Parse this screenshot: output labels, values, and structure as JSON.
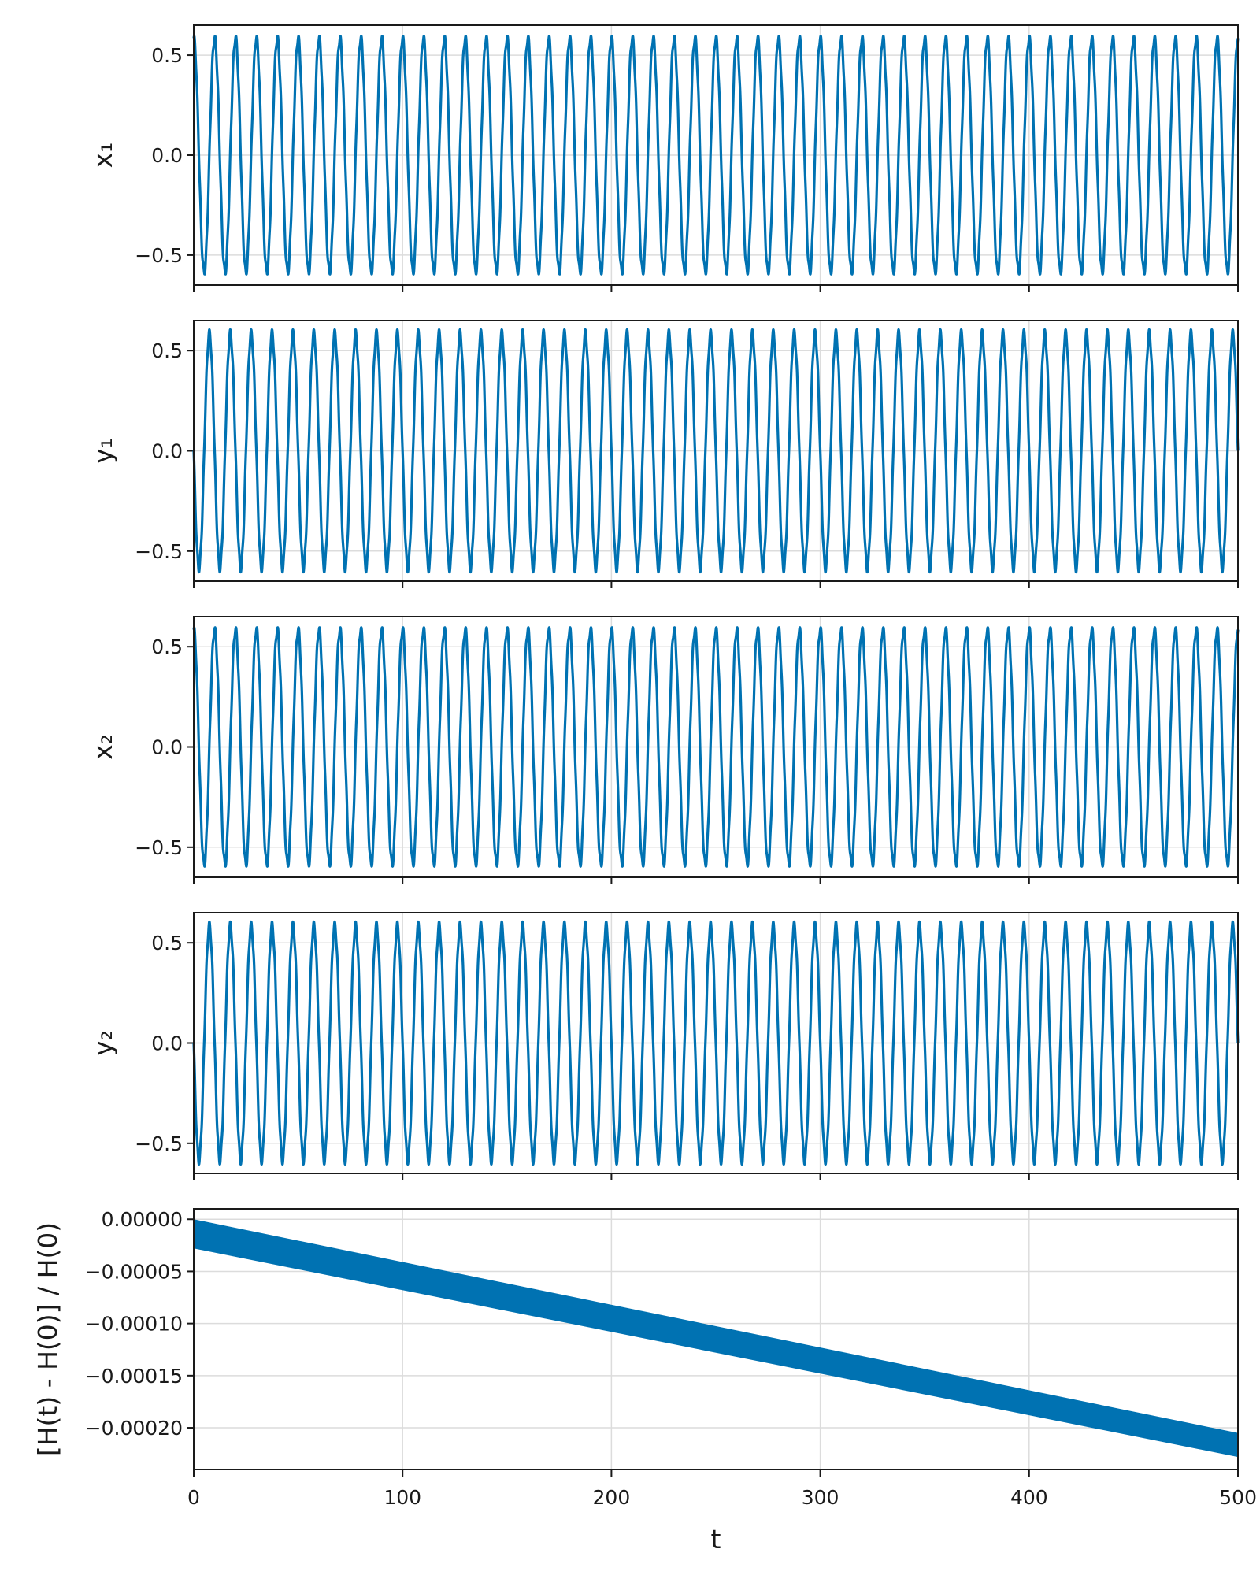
{
  "chart_data": [
    {
      "type": "line",
      "ylabel": "x₁",
      "xlim": [
        0,
        500
      ],
      "ylim": [
        -0.65,
        0.65
      ],
      "yticks": [
        -0.5,
        0.0,
        0.5
      ],
      "ytick_labels": [
        "−0.5",
        "0.0",
        "0.5"
      ],
      "grid": true,
      "series_color": "#0072b2",
      "signal": {
        "amplitude": 0.585,
        "period": 10.0,
        "phase": 1.57,
        "t_start": 0,
        "t_end": 500,
        "fast_amplitude": 0.02
      }
    },
    {
      "type": "line",
      "ylabel": "y₁",
      "xlim": [
        0,
        500
      ],
      "ylim": [
        -0.65,
        0.65
      ],
      "yticks": [
        -0.5,
        0.0,
        0.5
      ],
      "ytick_labels": [
        "−0.5",
        "0.0",
        "0.5"
      ],
      "grid": true,
      "series_color": "#0072b2",
      "signal": {
        "amplitude": 0.585,
        "period": 10.0,
        "phase": 3.14,
        "t_start": 0,
        "t_end": 500,
        "fast_amplitude": 0.02
      }
    },
    {
      "type": "line",
      "ylabel": "x₂",
      "xlim": [
        0,
        500
      ],
      "ylim": [
        -0.65,
        0.65
      ],
      "yticks": [
        -0.5,
        0.0,
        0.5
      ],
      "ytick_labels": [
        "−0.5",
        "0.0",
        "0.5"
      ],
      "grid": true,
      "series_color": "#0072b2",
      "signal": {
        "amplitude": 0.585,
        "period": 10.0,
        "phase": 1.57,
        "t_start": 0,
        "t_end": 500,
        "fast_amplitude": 0.02
      }
    },
    {
      "type": "line",
      "ylabel": "y₂",
      "xlim": [
        0,
        500
      ],
      "ylim": [
        -0.65,
        0.65
      ],
      "yticks": [
        -0.5,
        0.0,
        0.5
      ],
      "ytick_labels": [
        "−0.5",
        "0.0",
        "0.5"
      ],
      "grid": true,
      "series_color": "#0072b2",
      "signal": {
        "amplitude": 0.585,
        "period": 10.0,
        "phase": 3.14,
        "t_start": 0,
        "t_end": 500,
        "fast_amplitude": 0.02
      }
    },
    {
      "type": "area",
      "xlabel": "t",
      "ylabel": "[H(t) - H(0)] / H(0)",
      "xlim": [
        0,
        500
      ],
      "ylim": [
        -0.00024,
        1e-05
      ],
      "xticks": [
        0,
        100,
        200,
        300,
        400,
        500
      ],
      "xtick_labels": [
        "0",
        "100",
        "200",
        "300",
        "400",
        "500"
      ],
      "yticks": [
        0.0,
        -5e-05,
        -0.0001,
        -0.00015,
        -0.0002
      ],
      "ytick_labels": [
        "0.00000",
        "−0.00005",
        "−0.00010",
        "−0.00015",
        "−0.00020"
      ],
      "grid": true,
      "series_color": "#0072b2",
      "band": {
        "t": [
          0,
          500
        ],
        "upper": [
          0.0,
          -0.000205
        ],
        "lower": [
          -2.8e-05,
          -0.000228
        ]
      }
    }
  ]
}
